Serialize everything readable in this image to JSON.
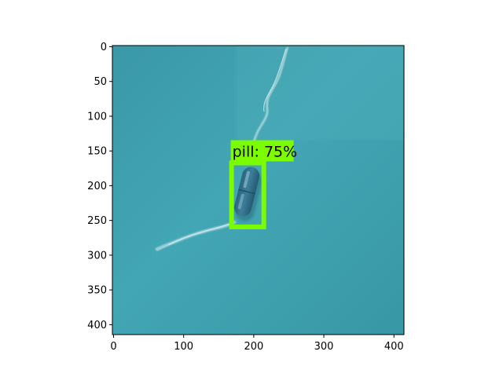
{
  "image": {
    "description_colors": {
      "background": "#3fa0ae",
      "pill_body": "#2f6e86",
      "pill_highlight": "#7fb4c6"
    },
    "extent": {
      "x_max": 416,
      "y_max": 416
    }
  },
  "axes": {
    "x_ticks": [
      0,
      100,
      200,
      300,
      400
    ],
    "y_ticks": [
      0,
      50,
      100,
      150,
      200,
      250,
      300,
      350,
      400
    ]
  },
  "detections": [
    {
      "label": "pill: 75%",
      "class": "pill",
      "score": 0.75,
      "box": {
        "x0": 170,
        "y0": 169,
        "x1": 216,
        "y1": 261
      },
      "color": "#7cfc00"
    }
  ]
}
